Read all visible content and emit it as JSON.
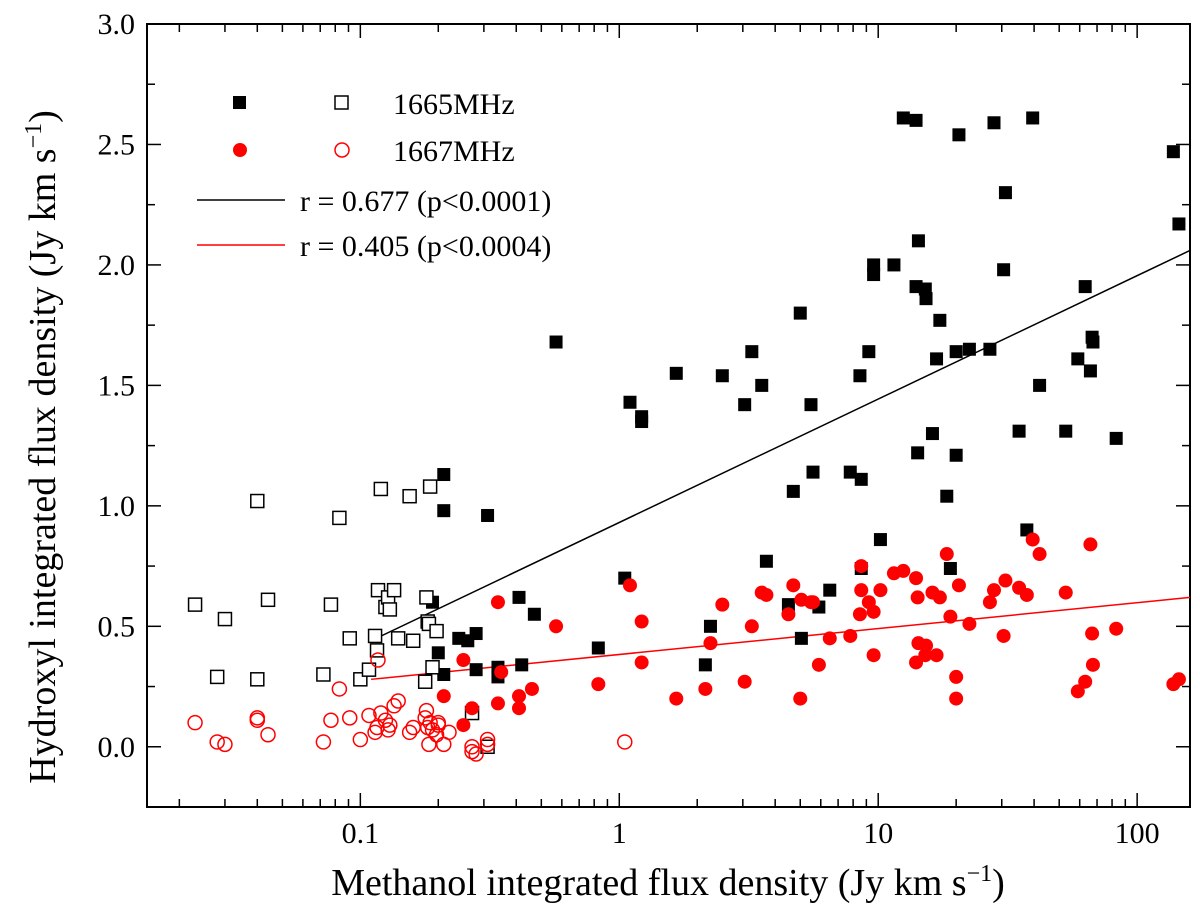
{
  "chart_data": {
    "type": "scatter",
    "xscale": "log",
    "xlim": [
      0.015,
      160
    ],
    "ylim": [
      -0.25,
      3.0
    ],
    "xlabel": "Methanol integrated flux density (Jy km s",
    "xlabel_sup": "−1",
    "xlabel_tail": ")",
    "ylabel": "Hydroxyl integrated flux density (Jy km s",
    "ylabel_sup": "−1",
    "ylabel_tail": ")",
    "xticks": [
      {
        "value": 0.1,
        "label": "0.1"
      },
      {
        "value": 1,
        "label": "1"
      },
      {
        "value": 10,
        "label": "10"
      },
      {
        "value": 100,
        "label": "100"
      }
    ],
    "yticks": [
      {
        "value": 0.0,
        "label": "0.0"
      },
      {
        "value": 0.5,
        "label": "0.5"
      },
      {
        "value": 1.0,
        "label": "1.0"
      },
      {
        "value": 1.5,
        "label": "1.5"
      },
      {
        "value": 2.0,
        "label": "2.0"
      },
      {
        "value": 2.5,
        "label": "2.5"
      },
      {
        "value": 3.0,
        "label": "3.0"
      }
    ],
    "legend": {
      "placement": "top-left",
      "items": [
        {
          "kind": "markers",
          "label": "1665MHz"
        },
        {
          "kind": "markers",
          "label": "1667MHz"
        },
        {
          "kind": "line",
          "label": "r = 0.677 (p<0.0001)",
          "color": "#000000"
        },
        {
          "kind": "line",
          "label": "r = 0.405 (p<0.0004)",
          "color": "#ff0000"
        }
      ]
    },
    "series": [
      {
        "name": "1665MHz detected",
        "marker": "square",
        "filled": true,
        "color": "#000000",
        "points": [
          [
            0.19,
            0.6
          ],
          [
            0.2,
            0.39
          ],
          [
            0.21,
            0.98
          ],
          [
            0.21,
            1.13
          ],
          [
            0.21,
            0.3
          ],
          [
            0.24,
            0.45
          ],
          [
            0.26,
            0.44
          ],
          [
            0.28,
            0.32
          ],
          [
            0.28,
            0.47
          ],
          [
            0.31,
            0.96
          ],
          [
            0.34,
            0.33
          ],
          [
            0.34,
            0.29
          ],
          [
            0.41,
            0.62
          ],
          [
            0.42,
            0.34
          ],
          [
            0.47,
            0.55
          ],
          [
            0.57,
            1.68
          ],
          [
            0.83,
            0.41
          ],
          [
            1.05,
            0.7
          ],
          [
            1.1,
            1.43
          ],
          [
            1.22,
            1.37
          ],
          [
            1.22,
            1.35
          ],
          [
            1.66,
            1.55
          ],
          [
            2.15,
            0.34
          ],
          [
            2.25,
            0.5
          ],
          [
            2.5,
            1.54
          ],
          [
            3.05,
            1.42
          ],
          [
            3.25,
            1.64
          ],
          [
            3.55,
            1.5
          ],
          [
            3.7,
            0.77
          ],
          [
            4.5,
            0.59
          ],
          [
            4.7,
            1.06
          ],
          [
            5.0,
            1.8
          ],
          [
            5.05,
            0.45
          ],
          [
            5.5,
            1.42
          ],
          [
            5.6,
            1.14
          ],
          [
            5.9,
            0.58
          ],
          [
            6.5,
            0.65
          ],
          [
            7.8,
            1.14
          ],
          [
            8.5,
            1.54
          ],
          [
            8.6,
            0.74
          ],
          [
            8.6,
            1.11
          ],
          [
            9.2,
            1.64
          ],
          [
            9.6,
            1.96
          ],
          [
            9.6,
            2.0
          ],
          [
            10.2,
            0.86
          ],
          [
            11.5,
            2.0
          ],
          [
            12.5,
            2.61
          ],
          [
            14,
            2.6
          ],
          [
            14,
            1.91
          ],
          [
            14.2,
            1.22
          ],
          [
            14.3,
            2.1
          ],
          [
            15.2,
            1.9
          ],
          [
            15.3,
            1.86
          ],
          [
            16.2,
            1.3
          ],
          [
            16.8,
            1.61
          ],
          [
            17.3,
            1.77
          ],
          [
            18.4,
            1.04
          ],
          [
            19.0,
            0.74
          ],
          [
            20,
            1.21
          ],
          [
            20,
            1.64
          ],
          [
            20.5,
            2.54
          ],
          [
            22.5,
            1.65
          ],
          [
            27,
            1.65
          ],
          [
            28,
            2.59
          ],
          [
            30.5,
            1.98
          ],
          [
            31,
            2.3
          ],
          [
            35,
            1.31
          ],
          [
            37.5,
            0.9
          ],
          [
            39.5,
            2.61
          ],
          [
            42,
            1.5
          ],
          [
            53,
            1.31
          ],
          [
            59,
            1.61
          ],
          [
            63,
            1.91
          ],
          [
            66,
            1.56
          ],
          [
            67,
            1.7
          ],
          [
            67.5,
            1.68
          ],
          [
            83,
            1.28
          ],
          [
            138,
            2.47
          ],
          [
            145,
            2.17
          ]
        ]
      },
      {
        "name": "1665MHz upper limits",
        "marker": "square",
        "filled": false,
        "color": "#000000",
        "points": [
          [
            0.023,
            0.59
          ],
          [
            0.028,
            0.29
          ],
          [
            0.03,
            0.53
          ],
          [
            0.04,
            1.02
          ],
          [
            0.04,
            0.28
          ],
          [
            0.044,
            0.61
          ],
          [
            0.072,
            0.3
          ],
          [
            0.077,
            0.59
          ],
          [
            0.083,
            0.95
          ],
          [
            0.091,
            0.45
          ],
          [
            0.1,
            0.28
          ],
          [
            0.108,
            0.32
          ],
          [
            0.114,
            0.46
          ],
          [
            0.116,
            0.4
          ],
          [
            0.117,
            0.65
          ],
          [
            0.12,
            1.07
          ],
          [
            0.125,
            0.58
          ],
          [
            0.128,
            0.62
          ],
          [
            0.13,
            0.57
          ],
          [
            0.135,
            0.65
          ],
          [
            0.14,
            0.45
          ],
          [
            0.155,
            1.04
          ],
          [
            0.16,
            0.44
          ],
          [
            0.178,
            0.27
          ],
          [
            0.18,
            0.62
          ],
          [
            0.182,
            0.52
          ],
          [
            0.184,
            0.51
          ],
          [
            0.186,
            1.08
          ],
          [
            0.19,
            0.33
          ],
          [
            0.197,
            0.48
          ],
          [
            0.27,
            0.14
          ],
          [
            0.31,
            0.0
          ]
        ]
      },
      {
        "name": "1667MHz detected",
        "marker": "circle",
        "filled": true,
        "color": "#ff0000",
        "points": [
          [
            0.21,
            0.21
          ],
          [
            0.25,
            0.36
          ],
          [
            0.25,
            0.09
          ],
          [
            0.27,
            0.16
          ],
          [
            0.34,
            0.6
          ],
          [
            0.34,
            0.18
          ],
          [
            0.35,
            0.31
          ],
          [
            0.41,
            0.16
          ],
          [
            0.41,
            0.21
          ],
          [
            0.46,
            0.24
          ],
          [
            0.57,
            0.5
          ],
          [
            0.83,
            0.26
          ],
          [
            1.1,
            0.67
          ],
          [
            1.22,
            0.52
          ],
          [
            1.22,
            0.35
          ],
          [
            1.66,
            0.2
          ],
          [
            2.15,
            0.24
          ],
          [
            2.25,
            0.43
          ],
          [
            2.5,
            0.59
          ],
          [
            3.05,
            0.27
          ],
          [
            3.25,
            0.5
          ],
          [
            3.55,
            0.64
          ],
          [
            3.7,
            0.63
          ],
          [
            4.5,
            0.55
          ],
          [
            4.7,
            0.67
          ],
          [
            5.0,
            0.2
          ],
          [
            5.05,
            0.61
          ],
          [
            5.5,
            0.6
          ],
          [
            5.6,
            0.6
          ],
          [
            5.9,
            0.34
          ],
          [
            6.5,
            0.45
          ],
          [
            7.8,
            0.46
          ],
          [
            8.5,
            0.55
          ],
          [
            8.6,
            0.75
          ],
          [
            8.6,
            0.65
          ],
          [
            9.2,
            0.6
          ],
          [
            9.6,
            0.56
          ],
          [
            9.6,
            0.38
          ],
          [
            10.2,
            0.65
          ],
          [
            11.5,
            0.72
          ],
          [
            12.5,
            0.73
          ],
          [
            14,
            0.7
          ],
          [
            14,
            0.35
          ],
          [
            14.2,
            0.62
          ],
          [
            14.3,
            0.43
          ],
          [
            15.2,
            0.38
          ],
          [
            15.3,
            0.42
          ],
          [
            16.2,
            0.64
          ],
          [
            16.8,
            0.38
          ],
          [
            17.3,
            0.62
          ],
          [
            18.4,
            0.8
          ],
          [
            19.0,
            0.54
          ],
          [
            20,
            0.29
          ],
          [
            20,
            0.2
          ],
          [
            20.5,
            0.67
          ],
          [
            22.5,
            0.51
          ],
          [
            27,
            0.6
          ],
          [
            28,
            0.65
          ],
          [
            30.5,
            0.46
          ],
          [
            31,
            0.69
          ],
          [
            35,
            0.66
          ],
          [
            37.5,
            0.63
          ],
          [
            39.5,
            0.86
          ],
          [
            42,
            0.8
          ],
          [
            53,
            0.64
          ],
          [
            59,
            0.23
          ],
          [
            63,
            0.27
          ],
          [
            66,
            0.84
          ],
          [
            67,
            0.47
          ],
          [
            67.5,
            0.34
          ],
          [
            83,
            0.49
          ],
          [
            138,
            0.26
          ],
          [
            145,
            0.28
          ]
        ]
      },
      {
        "name": "1667MHz upper limits",
        "marker": "circle",
        "filled": false,
        "color": "#ff0000",
        "points": [
          [
            0.023,
            0.1
          ],
          [
            0.028,
            0.02
          ],
          [
            0.03,
            0.01
          ],
          [
            0.04,
            0.11
          ],
          [
            0.04,
            0.12
          ],
          [
            0.044,
            0.05
          ],
          [
            0.072,
            0.02
          ],
          [
            0.077,
            0.11
          ],
          [
            0.083,
            0.24
          ],
          [
            0.091,
            0.12
          ],
          [
            0.1,
            0.03
          ],
          [
            0.108,
            0.13
          ],
          [
            0.114,
            0.06
          ],
          [
            0.116,
            0.08
          ],
          [
            0.117,
            0.36
          ],
          [
            0.12,
            0.14
          ],
          [
            0.125,
            0.11
          ],
          [
            0.128,
            0.07
          ],
          [
            0.13,
            0.09
          ],
          [
            0.135,
            0.17
          ],
          [
            0.14,
            0.19
          ],
          [
            0.155,
            0.06
          ],
          [
            0.16,
            0.08
          ],
          [
            0.178,
            0.12
          ],
          [
            0.18,
            0.15
          ],
          [
            0.182,
            0.08
          ],
          [
            0.184,
            0.01
          ],
          [
            0.186,
            0.1
          ],
          [
            0.19,
            0.07
          ],
          [
            0.197,
            0.05
          ],
          [
            0.2,
            0.1
          ],
          [
            0.2,
            0.09
          ],
          [
            0.21,
            0.01
          ],
          [
            0.22,
            0.06
          ],
          [
            0.27,
            0.0
          ],
          [
            0.27,
            -0.02
          ],
          [
            0.28,
            -0.03
          ],
          [
            0.31,
            0.03
          ],
          [
            0.31,
            0.01
          ],
          [
            1.05,
            0.02
          ]
        ]
      }
    ],
    "fits": [
      {
        "name": "1665MHz fit",
        "color": "#000000",
        "x": [
          0.11,
          160
        ],
        "y": [
          0.44,
          2.06
        ]
      },
      {
        "name": "1667MHz fit",
        "color": "#ff0000",
        "x": [
          0.11,
          160
        ],
        "y": [
          0.28,
          0.62
        ]
      }
    ]
  }
}
